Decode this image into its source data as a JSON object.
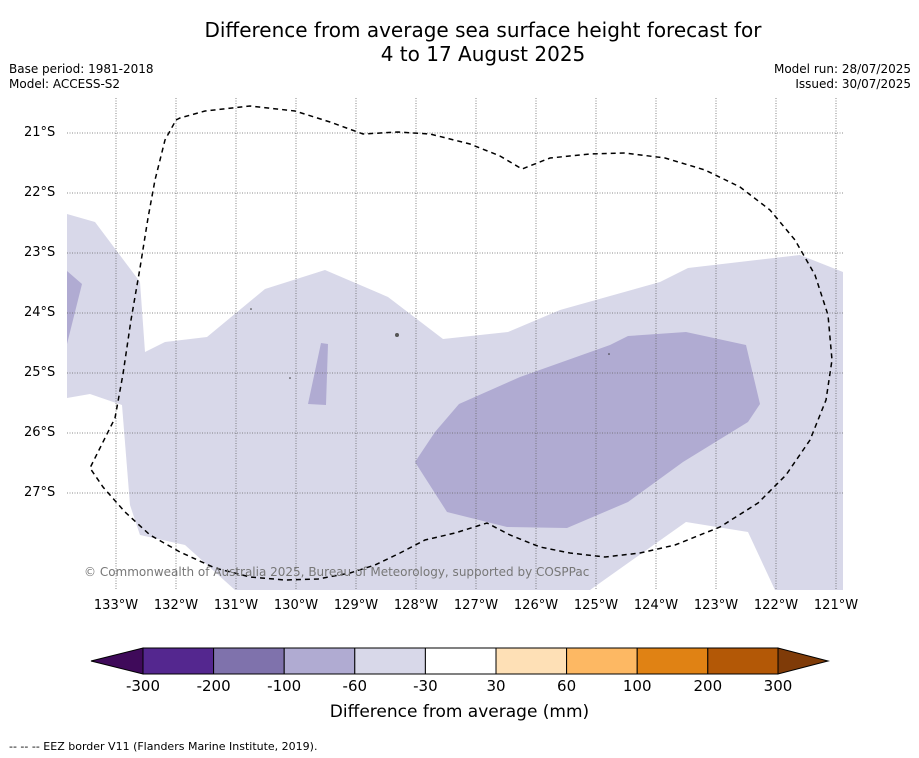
{
  "title": {
    "line1": "Difference from average sea surface height forecast for",
    "line2": "4 to 17 August 2025"
  },
  "meta_left": {
    "base_period": "Base period: 1981-2018",
    "model": "Model: ACCESS-S2"
  },
  "meta_right": {
    "model_run": "Model run: 28/07/2025",
    "issued": "Issued: 30/07/2025"
  },
  "map": {
    "lat_ticks": [
      "21°S",
      "22°S",
      "23°S",
      "24°S",
      "25°S",
      "26°S",
      "27°S"
    ],
    "lon_ticks": [
      "133°W",
      "132°W",
      "131°W",
      "130°W",
      "129°W",
      "128°W",
      "127°W",
      "126°W",
      "125°W",
      "124°W",
      "123°W",
      "122°W",
      "121°W"
    ],
    "lon_range": [
      -133.8,
      -120.9
    ],
    "lat_range": [
      -28.6,
      -20.4
    ],
    "gridlines": true,
    "copyright": "© Commonwealth of Australia 2025, Bureau of Meteorology, supported by COSPPac",
    "field_colors": {
      "-60 to -30": "#d8d8e9",
      "-100 to -60": "#b0abd2"
    }
  },
  "colorbar": {
    "ticks": [
      "-300",
      "-200",
      "-100",
      "-60",
      "-30",
      "30",
      "60",
      "100",
      "200",
      "300"
    ],
    "colors": [
      "#3f0a5a",
      "#54278f",
      "#7f72ac",
      "#b0abd2",
      "#d8d8e9",
      "#ffffff",
      "#fee0b6",
      "#fdb863",
      "#e08214",
      "#b35806",
      "#7f3b08"
    ],
    "label": "Difference from average (mm)"
  },
  "footnote": "--  --  -- EEZ border V11 (Flanders Marine Institute, 2019)."
}
